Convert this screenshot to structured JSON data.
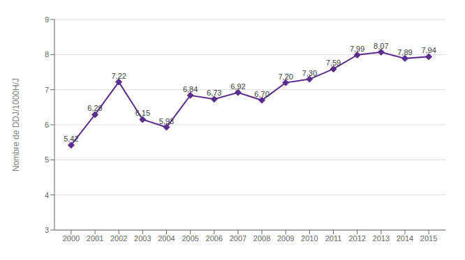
{
  "chart_data": {
    "type": "line",
    "x": [
      2000,
      2001,
      2002,
      2003,
      2004,
      2005,
      2006,
      2007,
      2008,
      2009,
      2010,
      2011,
      2012,
      2013,
      2014,
      2015
    ],
    "values": [
      5.42,
      6.29,
      7.22,
      6.15,
      5.93,
      6.84,
      6.73,
      6.92,
      6.7,
      7.2,
      7.3,
      7.59,
      7.99,
      8.07,
      7.89,
      7.94
    ],
    "value_labels": [
      "5,42",
      "6,29",
      "7,22",
      "6,15",
      "5,93",
      "6,84",
      "6,73",
      "6,92",
      "6,70",
      "7,20",
      "7,30",
      "7,59",
      "7,99",
      "8,07",
      "7,89",
      "7,94"
    ],
    "color": "#5b2d8e",
    "marker": "diamond",
    "ylabel": "Nombre de DDJ/1000H/J",
    "xlim": [
      1999.3,
      2015.7
    ],
    "xticks": [
      2000,
      2001,
      2002,
      2003,
      2004,
      2005,
      2006,
      2007,
      2008,
      2009,
      2010,
      2011,
      2012,
      2013,
      2014,
      2015
    ],
    "ylim": [
      3,
      9
    ],
    "yticks": [
      3,
      4,
      5,
      6,
      7,
      8,
      9
    ],
    "grid": true,
    "data_labels": true
  }
}
